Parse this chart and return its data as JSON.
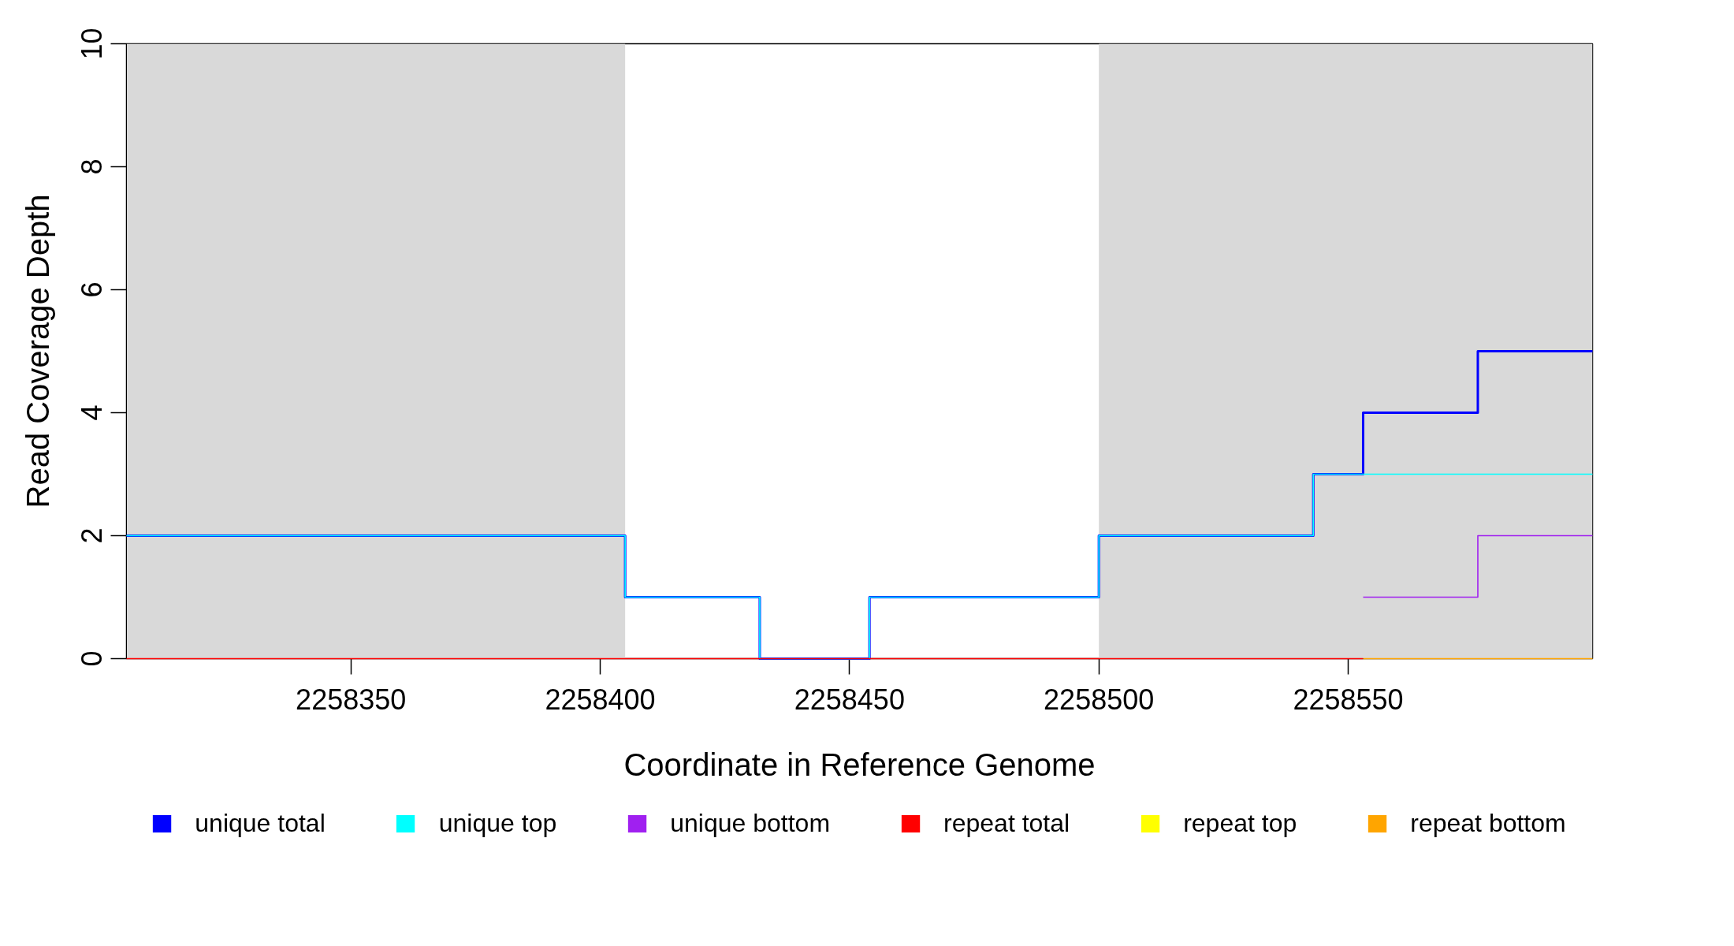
{
  "chart_data": {
    "type": "step",
    "xlabel": "Coordinate in Reference Genome",
    "ylabel": "Read Coverage Depth",
    "x": [
      2258305,
      2258405,
      2258432,
      2258454,
      2258500,
      2258543,
      2258553,
      2258576,
      2258599
    ],
    "series": [
      {
        "name": "unique total",
        "color": "#0000ff",
        "values": [
          2,
          1,
          0,
          1,
          2,
          3,
          4,
          5,
          5
        ]
      },
      {
        "name": "unique top",
        "color": "#00ffff",
        "values": [
          2,
          1,
          0,
          1,
          2,
          3,
          3,
          3,
          3
        ]
      },
      {
        "name": "unique bottom",
        "color": "#a020f0",
        "x": [
          2258553,
          2258576,
          2258599
        ],
        "values": [
          1,
          2,
          2
        ]
      },
      {
        "name": "repeat total",
        "color": "#ff0000",
        "x": [
          2258305,
          2258553
        ],
        "values": [
          0,
          0
        ]
      },
      {
        "name": "repeat top",
        "color": "#ffff00",
        "values": [
          null,
          null,
          null,
          null,
          null,
          null,
          null,
          null,
          null
        ]
      },
      {
        "name": "repeat bottom",
        "color": "#ffa500",
        "x": [
          2258553,
          2258599
        ],
        "values": [
          0,
          0
        ]
      }
    ],
    "xlim": [
      2258305,
      2258599
    ],
    "ylim": [
      0,
      10
    ],
    "xticks": [
      2258350,
      2258400,
      2258450,
      2258500,
      2258550
    ],
    "yticks": [
      0,
      2,
      4,
      6,
      8,
      10
    ],
    "bands": [
      {
        "axis": "x",
        "from": 2258305,
        "to": 2258405,
        "color": "#d9d9d9"
      },
      {
        "axis": "x",
        "from": 2258500,
        "to": 2258599,
        "color": "#d9d9d9"
      }
    ],
    "legend": "bottom"
  }
}
